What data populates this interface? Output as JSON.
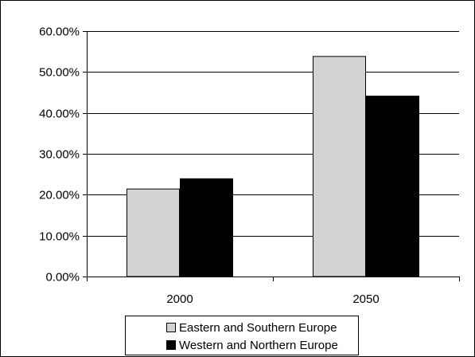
{
  "chart_data": {
    "type": "bar",
    "categories": [
      "2000",
      "2050"
    ],
    "series": [
      {
        "name": "Eastern and Southern Europe",
        "values": [
          21.4,
          53.8
        ],
        "color": "#d3d3d3"
      },
      {
        "name": "Western and Northern Europe",
        "values": [
          23.9,
          44.1
        ],
        "color": "#000000"
      }
    ],
    "ylim": [
      0,
      60
    ],
    "yticks": [
      0,
      10,
      20,
      30,
      40,
      50,
      60
    ],
    "ytick_labels": [
      "0.00%",
      "10.00%",
      "20.00%",
      "30.00%",
      "40.00%",
      "50.00%",
      "60.00%"
    ],
    "grid": true,
    "legend_position": "bottom"
  }
}
